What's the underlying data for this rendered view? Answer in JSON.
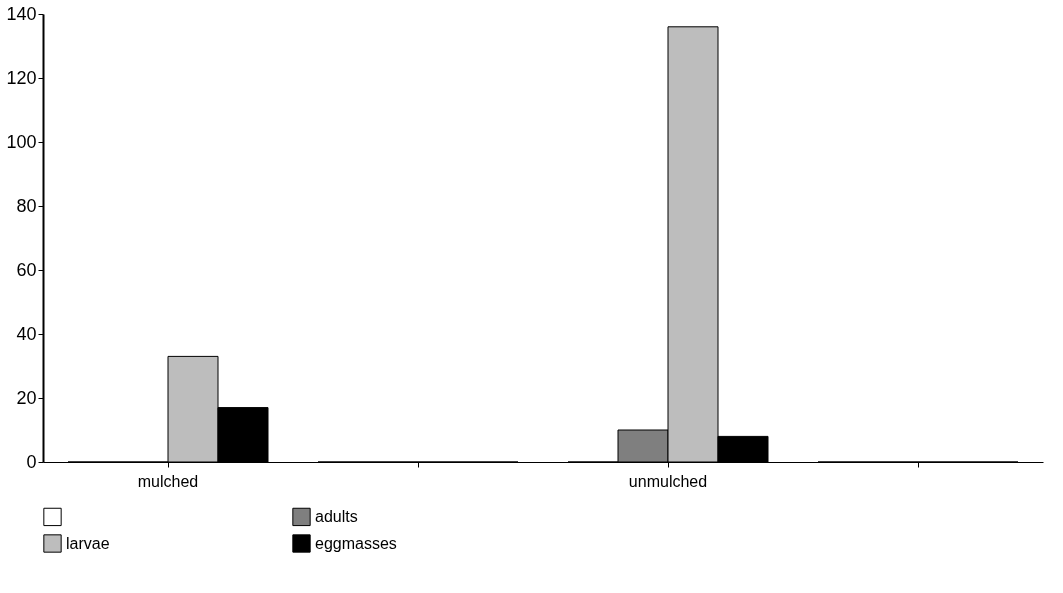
{
  "chart_data": {
    "type": "bar",
    "categories": [
      "mulched",
      null,
      "unmulched",
      null
    ],
    "series": [
      {
        "color": "#ffffff",
        "values": [
          0,
          0,
          0,
          0
        ]
      },
      {
        "name": "adults",
        "color": "#7f7f7f",
        "values": [
          0,
          0,
          10,
          0
        ]
      },
      {
        "name": "larvae",
        "color": "#bdbdbd",
        "values": [
          33,
          0,
          136,
          0
        ]
      },
      {
        "name": "eggmasses",
        "color": "#000000",
        "values": [
          17,
          0,
          8,
          0
        ]
      }
    ],
    "ylim": [
      0,
      140
    ],
    "yticks": [
      0,
      20,
      40,
      60,
      80,
      100,
      120,
      140
    ],
    "grid": false,
    "legend": "bottom"
  }
}
